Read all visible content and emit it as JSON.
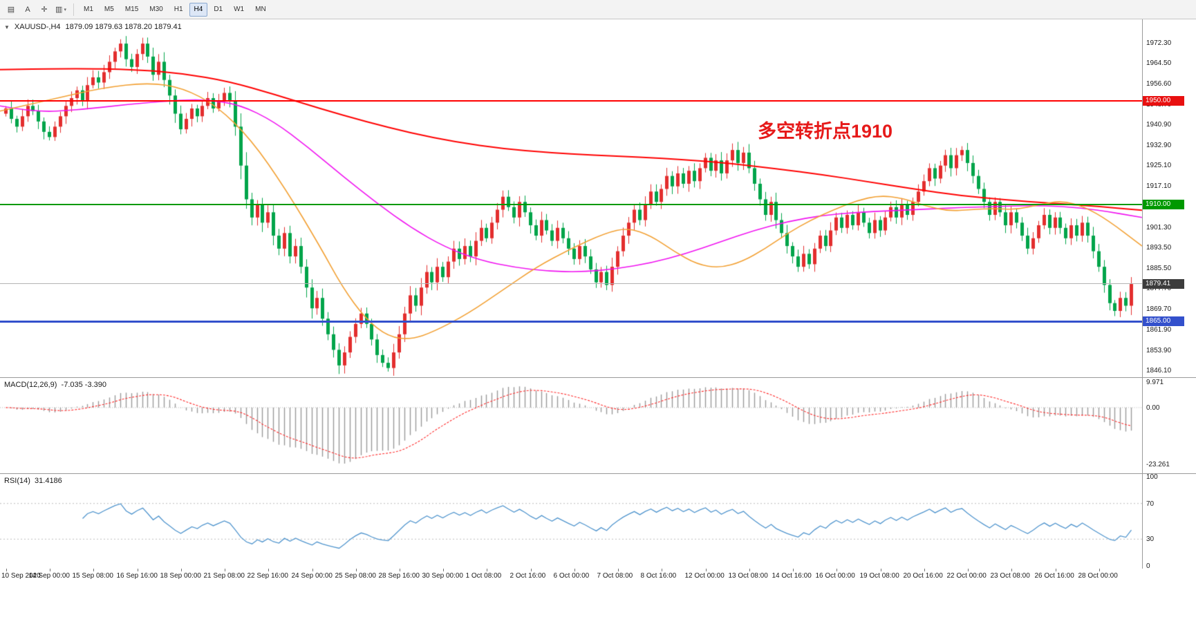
{
  "window": {
    "bg": "#ffffff"
  },
  "toolbar": {
    "icons": [
      {
        "name": "charts-icon",
        "glyph": "▤"
      },
      {
        "name": "cursor-a-icon",
        "glyph": "A"
      },
      {
        "name": "crosshair-icon",
        "glyph": "✛"
      },
      {
        "name": "period-dropdown-icon",
        "glyph": "▥",
        "arrow": "▾"
      }
    ],
    "timeframes": [
      "M1",
      "M5",
      "M15",
      "M30",
      "H1",
      "H4",
      "D1",
      "W1",
      "MN"
    ],
    "active_timeframe": "H4"
  },
  "chart_header": {
    "collapse_icon": "▼",
    "symbol": "XAUUSD-,H4",
    "ohlc": "1879.09 1879.63 1878.20 1879.41"
  },
  "annotation": {
    "text": "多空转折点1910",
    "color": "#e61919"
  },
  "price_axis": {
    "ticks": [
      "1972.30",
      "1964.50",
      "1956.60",
      "1948.70",
      "1940.90",
      "1932.90",
      "1925.10",
      "1917.10",
      "1909.30",
      "1901.30",
      "1893.50",
      "1885.50",
      "1877.70",
      "1869.70",
      "1861.90",
      "1853.90",
      "1846.10"
    ]
  },
  "indicators": {
    "macd": {
      "label": "MACD(12,26,9)",
      "values": "-7.035 -3.390",
      "ticks": [
        {
          "label": "9.971",
          "value": 9.971
        },
        {
          "label": "0.00",
          "value": 0
        },
        {
          "label": "-23.261",
          "value": -23.261
        }
      ]
    },
    "rsi": {
      "label": "RSI(14)",
      "values": "31.4186",
      "ticks": [
        {
          "label": "100",
          "value": 100
        },
        {
          "label": "70",
          "value": 70
        },
        {
          "label": "30",
          "value": 30
        },
        {
          "label": "0",
          "value": 0
        }
      ]
    }
  },
  "time_axis": {
    "labels": [
      "10 Sep 2020",
      "14 Sep 00:00",
      "15 Sep 08:00",
      "16 Sep 16:00",
      "18 Sep 00:00",
      "21 Sep 08:00",
      "22 Sep 16:00",
      "24 Sep 00:00",
      "25 Sep 08:00",
      "28 Sep 16:00",
      "30 Sep 00:00",
      "1 Oct 08:00",
      "2 Oct 16:00",
      "6 Oct 00:00",
      "7 Oct 08:00",
      "8 Oct 16:00",
      "12 Oct 00:00",
      "13 Oct 08:00",
      "14 Oct 16:00",
      "16 Oct 00:00",
      "19 Oct 08:00",
      "20 Oct 16:00",
      "22 Oct 00:00",
      "23 Oct 08:00",
      "26 Oct 16:00",
      "28 Oct 00:00"
    ]
  },
  "chart_data": {
    "type": "candlestick",
    "symbol": "XAUUSD",
    "timeframe": "H4",
    "title": "XAUUSD-,H4",
    "current_bar": {
      "open": 1879.09,
      "high": 1879.63,
      "low": 1878.2,
      "close": 1879.41
    },
    "ylim": [
      1846.1,
      1972.3
    ],
    "up_color": "#e32e2e",
    "down_color": "#00a44a",
    "first_open": 1945,
    "closes": [
      1947,
      1943,
      1940,
      1944,
      1948,
      1946,
      1942,
      1938,
      1936,
      1940,
      1944,
      1948,
      1951,
      1954,
      1950,
      1956,
      1959,
      1957,
      1961,
      1965,
      1969,
      1972,
      1966,
      1963,
      1968,
      1972,
      1967,
      1960,
      1965,
      1958,
      1952,
      1945,
      1939,
      1943,
      1947,
      1944,
      1948,
      1951,
      1947,
      1950,
      1953,
      1950,
      1940,
      1925,
      1912,
      1905,
      1910,
      1903,
      1907,
      1898,
      1893,
      1899,
      1890,
      1894,
      1886,
      1878,
      1870,
      1874,
      1866,
      1860,
      1854,
      1848,
      1853,
      1859,
      1864,
      1868,
      1864,
      1858,
      1852,
      1849,
      1847,
      1853,
      1860,
      1868,
      1875,
      1871,
      1878,
      1884,
      1880,
      1886,
      1882,
      1888,
      1893,
      1889,
      1894,
      1890,
      1896,
      1901,
      1897,
      1903,
      1908,
      1913,
      1909,
      1905,
      1911,
      1907,
      1902,
      1898,
      1904,
      1900,
      1896,
      1901,
      1897,
      1893,
      1889,
      1894,
      1890,
      1885,
      1880,
      1884,
      1879,
      1886,
      1892,
      1898,
      1903,
      1908,
      1904,
      1910,
      1915,
      1911,
      1916,
      1921,
      1917,
      1922,
      1918,
      1923,
      1919,
      1924,
      1928,
      1923,
      1927,
      1922,
      1927,
      1931,
      1926,
      1930,
      1924,
      1918,
      1912,
      1906,
      1911,
      1904,
      1899,
      1894,
      1890,
      1886,
      1891,
      1887,
      1893,
      1898,
      1894,
      1900,
      1905,
      1901,
      1906,
      1902,
      1907,
      1903,
      1899,
      1904,
      1900,
      1905,
      1909,
      1905,
      1910,
      1906,
      1911,
      1915,
      1919,
      1924,
      1920,
      1925,
      1929,
      1924,
      1929,
      1931,
      1926,
      1921,
      1916,
      1911,
      1906,
      1911,
      1907,
      1902,
      1907,
      1903,
      1898,
      1893,
      1897,
      1902,
      1906,
      1901,
      1905,
      1901,
      1897,
      1902,
      1898,
      1903,
      1898,
      1892,
      1886,
      1879,
      1872,
      1869,
      1874,
      1871,
      1879.41
    ],
    "levels": [
      {
        "name": "resistance-line",
        "price": 1950.0,
        "label": "1950.00",
        "line_color": "#ff0000",
        "line_width": 2,
        "badge_bg": "#e81010"
      },
      {
        "name": "pivot-line",
        "price": 1910.0,
        "label": "1910.00",
        "line_color": "#009900",
        "line_width": 2,
        "badge_bg": "#009900"
      },
      {
        "name": "bid-price-line",
        "price": 1879.41,
        "label": "1879.41",
        "line_color": "#b4b4b4",
        "line_width": 1,
        "badge_bg": "#3c3c3c"
      },
      {
        "name": "support-line",
        "price": 1865.0,
        "label": "1865.00",
        "line_color": "#3350cc",
        "line_width": 3,
        "badge_bg": "#3350cc"
      }
    ],
    "moving_averages": [
      {
        "name": "ma-slow-red",
        "color": "#ff0000",
        "width": 2,
        "anchors": [
          [
            0,
            1962
          ],
          [
            0.06,
            1962.5
          ],
          [
            0.12,
            1962
          ],
          [
            0.16,
            1960.5
          ],
          [
            0.2,
            1957.5
          ],
          [
            0.24,
            1952.5
          ],
          [
            0.28,
            1947
          ],
          [
            0.32,
            1942
          ],
          [
            0.36,
            1937.5
          ],
          [
            0.4,
            1934
          ],
          [
            0.44,
            1931.5
          ],
          [
            0.48,
            1930
          ],
          [
            0.52,
            1929
          ],
          [
            0.56,
            1928.3
          ],
          [
            0.6,
            1927.3
          ],
          [
            0.64,
            1925.8
          ],
          [
            0.68,
            1923.8
          ],
          [
            0.72,
            1921.5
          ],
          [
            0.76,
            1918.8
          ],
          [
            0.8,
            1916
          ],
          [
            0.84,
            1913.5
          ],
          [
            0.88,
            1911.8
          ],
          [
            0.92,
            1910.5
          ],
          [
            0.96,
            1909.3
          ],
          [
            1,
            1907.8
          ]
        ]
      },
      {
        "name": "ma-mid-magenta",
        "color": "#f012f0",
        "width": 1.6,
        "anchors": [
          [
            0,
            1948
          ],
          [
            0.03,
            1945.5
          ],
          [
            0.07,
            1946.5
          ],
          [
            0.11,
            1948.5
          ],
          [
            0.15,
            1950
          ],
          [
            0.18,
            1950.5
          ],
          [
            0.21,
            1948.5
          ],
          [
            0.24,
            1942
          ],
          [
            0.27,
            1932
          ],
          [
            0.3,
            1921
          ],
          [
            0.33,
            1910.5
          ],
          [
            0.36,
            1901
          ],
          [
            0.39,
            1893.5
          ],
          [
            0.42,
            1888.5
          ],
          [
            0.45,
            1885.8
          ],
          [
            0.48,
            1884.3
          ],
          [
            0.51,
            1884
          ],
          [
            0.54,
            1885.2
          ],
          [
            0.57,
            1887.5
          ],
          [
            0.6,
            1891
          ],
          [
            0.63,
            1895.5
          ],
          [
            0.66,
            1900
          ],
          [
            0.69,
            1903.5
          ],
          [
            0.72,
            1905.8
          ],
          [
            0.75,
            1907
          ],
          [
            0.78,
            1907.6
          ],
          [
            0.81,
            1908.2
          ],
          [
            0.84,
            1908.8
          ],
          [
            0.87,
            1909.2
          ],
          [
            0.9,
            1909.6
          ],
          [
            0.93,
            1909.3
          ],
          [
            0.96,
            1908
          ],
          [
            1,
            1905
          ]
        ]
      },
      {
        "name": "ma-fast-orange",
        "color": "#f2a033",
        "width": 1.6,
        "anchors": [
          [
            0,
            1946
          ],
          [
            0.05,
            1951
          ],
          [
            0.09,
            1955
          ],
          [
            0.13,
            1957
          ],
          [
            0.16,
            1955
          ],
          [
            0.19,
            1948
          ],
          [
            0.22,
            1935
          ],
          [
            0.25,
            1916
          ],
          [
            0.28,
            1894
          ],
          [
            0.3,
            1878
          ],
          [
            0.32,
            1866
          ],
          [
            0.34,
            1859
          ],
          [
            0.36,
            1858
          ],
          [
            0.38,
            1861
          ],
          [
            0.41,
            1868
          ],
          [
            0.44,
            1877
          ],
          [
            0.47,
            1886
          ],
          [
            0.5,
            1893
          ],
          [
            0.53,
            1899
          ],
          [
            0.55,
            1901
          ],
          [
            0.57,
            1898
          ],
          [
            0.59,
            1892
          ],
          [
            0.61,
            1887
          ],
          [
            0.63,
            1885.5
          ],
          [
            0.65,
            1888
          ],
          [
            0.67,
            1893
          ],
          [
            0.69,
            1899
          ],
          [
            0.71,
            1904
          ],
          [
            0.73,
            1908
          ],
          [
            0.75,
            1911.5
          ],
          [
            0.77,
            1913.5
          ],
          [
            0.79,
            1912.5
          ],
          [
            0.81,
            1909.5
          ],
          [
            0.83,
            1907.5
          ],
          [
            0.85,
            1908
          ],
          [
            0.87,
            1908.5
          ],
          [
            0.89,
            1908
          ],
          [
            0.91,
            1910
          ],
          [
            0.93,
            1911.5
          ],
          [
            0.95,
            1909
          ],
          [
            0.97,
            1904
          ],
          [
            1,
            1894
          ]
        ]
      }
    ],
    "macd": {
      "fast": 12,
      "slow": 26,
      "signal": 9,
      "current": -7.035,
      "current_signal": -3.39,
      "range": [
        -23.261,
        9.971
      ],
      "histogram_color": "#999999",
      "signal_color": "#ff2a2a"
    },
    "rsi": {
      "period": 14,
      "current": 31.4186,
      "range": [
        0,
        100
      ],
      "guides": [
        70,
        30
      ],
      "line_color": "#4f94cd"
    }
  }
}
